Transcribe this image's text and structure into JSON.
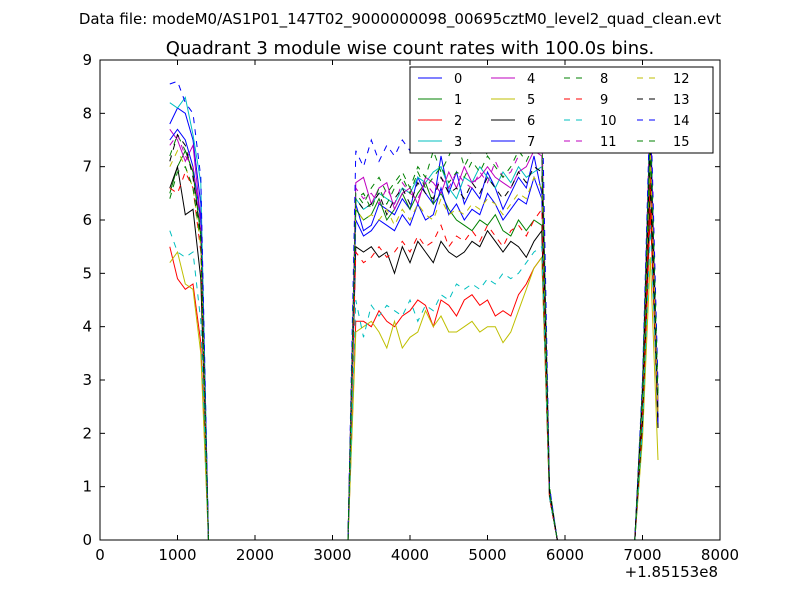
{
  "figure": {
    "suptitle": "Data file: modeM0/AS1P01_147T02_9000000098_00695cztM0_level2_quad_clean.evt"
  },
  "chart_data": {
    "type": "line",
    "title": "Quadrant 3 module wise count rates with 100.0s bins.",
    "xlabel": "",
    "ylabel": "",
    "x_offset_label": "+1.85153e8",
    "xlim": [
      0,
      8000
    ],
    "ylim": [
      0,
      9
    ],
    "xticks": [
      "0",
      "1000",
      "2000",
      "3000",
      "4000",
      "5000",
      "6000",
      "7000",
      "8000"
    ],
    "yticks": [
      "0",
      "1",
      "2",
      "3",
      "4",
      "5",
      "6",
      "7",
      "8",
      "9"
    ],
    "grid": false,
    "legend_position": "top-right",
    "x": [
      900,
      1000,
      1100,
      1200,
      1300,
      1400,
      1500,
      3100,
      3200,
      3300,
      3400,
      3500,
      3600,
      3700,
      3800,
      3900,
      4000,
      4100,
      4200,
      4300,
      4400,
      4500,
      4600,
      4700,
      4800,
      4900,
      5000,
      5100,
      5200,
      5300,
      5400,
      5500,
      5600,
      5700,
      5800,
      5900,
      6000,
      6900,
      7000,
      7100,
      7200
    ],
    "series": [
      {
        "name": "0",
        "color": "#0000ff",
        "dash": "solid",
        "values": [
          7.8,
          8.1,
          8.0,
          7.5,
          6.3,
          0,
          0,
          0,
          0,
          6.3,
          5.8,
          5.9,
          6.3,
          6.2,
          6.1,
          6.4,
          6.2,
          6.8,
          6.5,
          6.3,
          7.2,
          6.5,
          6.9,
          6.3,
          6.6,
          6.4,
          6.9,
          6.6,
          6.2,
          6.5,
          6.8,
          6.6,
          7.2,
          6.5,
          0.9,
          0,
          0,
          0,
          2.8,
          8.1,
          2.1
        ]
      },
      {
        "name": "1",
        "color": "#008000",
        "dash": "solid",
        "values": [
          6.5,
          7.0,
          7.3,
          6.9,
          5.7,
          0,
          0,
          0,
          0,
          6.2,
          6.0,
          6.1,
          6.4,
          6.0,
          6.2,
          6.5,
          6.2,
          6.5,
          6.7,
          6.3,
          6.5,
          6.2,
          6.0,
          5.9,
          5.8,
          6.0,
          5.9,
          6.1,
          5.8,
          5.7,
          6.0,
          5.8,
          6.0,
          5.9,
          0.9,
          0,
          0,
          0,
          2.5,
          7.2,
          2.6
        ]
      },
      {
        "name": "2",
        "color": "#ff0000",
        "dash": "solid",
        "values": [
          5.5,
          4.9,
          4.7,
          4.8,
          3.7,
          0,
          0,
          0,
          0,
          4.1,
          4.1,
          4.0,
          4.3,
          4.1,
          4.0,
          4.2,
          4.3,
          4.5,
          4.4,
          4.0,
          4.5,
          4.4,
          4.2,
          4.5,
          4.6,
          4.4,
          4.5,
          4.2,
          4.3,
          4.2,
          4.6,
          4.8,
          5.1,
          5.3,
          0.8,
          0,
          0,
          0,
          2.0,
          6.2,
          2.2
        ]
      },
      {
        "name": "3",
        "color": "#00bfbf",
        "dash": "solid",
        "values": [
          8.2,
          8.1,
          8.3,
          7.6,
          6.7,
          0,
          0,
          0,
          0,
          6.4,
          6.2,
          6.3,
          6.5,
          6.4,
          6.3,
          6.6,
          6.5,
          6.8,
          6.7,
          6.9,
          7.0,
          6.6,
          6.4,
          6.8,
          6.7,
          7.0,
          6.8,
          6.6,
          6.9,
          6.7,
          7.0,
          6.8,
          6.9,
          7.0,
          0.9,
          0,
          0,
          0,
          2.7,
          7.6,
          2.5
        ]
      },
      {
        "name": "4",
        "color": "#bf00bf",
        "dash": "solid",
        "values": [
          7.7,
          7.5,
          7.1,
          7.4,
          6.0,
          0,
          0,
          0,
          0,
          6.7,
          6.8,
          6.3,
          6.6,
          6.7,
          6.2,
          6.5,
          6.6,
          6.3,
          6.8,
          6.7,
          6.5,
          6.9,
          6.6,
          7.0,
          6.7,
          6.8,
          7.0,
          6.8,
          6.7,
          6.6,
          6.9,
          7.0,
          7.3,
          7.2,
          0.9,
          0,
          0,
          0,
          2.6,
          7.8,
          2.4
        ]
      },
      {
        "name": "5",
        "color": "#bfbf00",
        "dash": "solid",
        "values": [
          5.2,
          5.4,
          4.8,
          4.7,
          3.5,
          0,
          0,
          0,
          0,
          3.9,
          4.0,
          4.1,
          3.9,
          3.6,
          4.1,
          3.6,
          3.8,
          3.9,
          4.3,
          4.0,
          4.2,
          3.9,
          3.9,
          4.0,
          4.1,
          3.9,
          4.0,
          4.0,
          3.7,
          3.9,
          4.3,
          4.7,
          5.1,
          5.3,
          0.8,
          0,
          0,
          0,
          1.9,
          5.3,
          1.5
        ]
      },
      {
        "name": "6",
        "color": "#000000",
        "dash": "solid",
        "values": [
          6.6,
          7.0,
          6.1,
          6.2,
          4.9,
          0,
          0,
          0,
          0,
          5.5,
          5.4,
          5.5,
          5.3,
          5.4,
          5.0,
          5.5,
          5.2,
          5.6,
          5.4,
          5.2,
          5.6,
          5.4,
          5.3,
          5.4,
          5.6,
          5.5,
          5.8,
          5.6,
          5.4,
          5.6,
          5.5,
          5.3,
          5.6,
          5.8,
          0.8,
          0,
          0,
          0,
          2.2,
          6.7,
          2.1
        ]
      },
      {
        "name": "7",
        "color": "#0000ff",
        "dash": "solid",
        "values": [
          7.5,
          7.7,
          7.5,
          7.0,
          6.0,
          0,
          0,
          0,
          0,
          6.0,
          5.7,
          5.8,
          6.0,
          5.9,
          5.8,
          6.1,
          5.9,
          6.3,
          6.0,
          6.1,
          6.6,
          6.1,
          6.3,
          6.0,
          6.2,
          6.1,
          6.5,
          6.3,
          6.0,
          6.2,
          6.4,
          6.3,
          6.8,
          6.4,
          0.9,
          0,
          0,
          0,
          2.7,
          7.9,
          2.2
        ]
      },
      {
        "name": "8",
        "color": "#008000",
        "dash": "dashed",
        "values": [
          7.2,
          7.6,
          7.3,
          6.9,
          5.8,
          0,
          0,
          0,
          0,
          6.5,
          6.3,
          6.6,
          6.8,
          6.5,
          6.7,
          6.9,
          6.6,
          7.0,
          6.8,
          7.3,
          6.9,
          7.2,
          7.5,
          7.0,
          7.3,
          7.6,
          7.2,
          7.8,
          7.4,
          7.6,
          7.9,
          7.5,
          7.8,
          7.7,
          1.0,
          0,
          0,
          0,
          2.9,
          8.0,
          2.8
        ]
      },
      {
        "name": "9",
        "color": "#ff0000",
        "dash": "dashed",
        "values": [
          6.6,
          6.5,
          6.9,
          6.6,
          5.4,
          0,
          0,
          0,
          0,
          5.4,
          5.2,
          5.3,
          5.5,
          5.3,
          5.4,
          5.6,
          5.4,
          5.7,
          5.5,
          5.6,
          5.9,
          5.5,
          5.7,
          5.6,
          5.8,
          5.6,
          5.9,
          5.7,
          5.5,
          5.8,
          5.9,
          5.7,
          6.0,
          6.2,
          0.8,
          0,
          0,
          0,
          2.4,
          6.8,
          2.3
        ]
      },
      {
        "name": "10",
        "color": "#00bfbf",
        "dash": "dashed",
        "values": [
          5.8,
          5.4,
          5.3,
          5.4,
          4.1,
          0,
          0,
          0,
          0,
          4.5,
          3.8,
          4.4,
          4.2,
          4.4,
          4.3,
          4.2,
          4.5,
          4.1,
          4.4,
          4.3,
          4.6,
          4.5,
          4.8,
          4.7,
          4.8,
          4.7,
          4.9,
          4.8,
          5.0,
          4.9,
          5.0,
          5.2,
          5.4,
          5.5,
          0.8,
          0,
          0,
          0,
          2.1,
          5.9,
          2.4
        ]
      },
      {
        "name": "11",
        "color": "#bf00bf",
        "dash": "dashed",
        "values": [
          7.4,
          7.6,
          7.2,
          7.0,
          5.9,
          0,
          0,
          0,
          0,
          6.6,
          6.4,
          6.5,
          6.3,
          6.6,
          6.3,
          6.7,
          6.5,
          6.4,
          6.7,
          6.5,
          6.8,
          6.6,
          6.9,
          6.7,
          6.6,
          6.9,
          6.7,
          7.1,
          6.8,
          6.9,
          7.2,
          7.4,
          7.6,
          7.8,
          0.9,
          0,
          0,
          0,
          2.8,
          8.2,
          2.5
        ]
      },
      {
        "name": "12",
        "color": "#bfbf00",
        "dash": "dashed",
        "values": [
          7.0,
          7.3,
          7.0,
          6.6,
          5.5,
          0,
          0,
          0,
          0,
          6.2,
          6.0,
          6.1,
          6.0,
          6.2,
          5.9,
          6.2,
          6.0,
          6.3,
          6.1,
          6.0,
          6.4,
          6.1,
          6.2,
          6.1,
          6.3,
          6.2,
          6.4,
          6.3,
          6.1,
          6.3,
          6.5,
          6.4,
          6.8,
          6.6,
          0.9,
          0,
          0,
          0,
          2.6,
          7.3,
          2.4
        ]
      },
      {
        "name": "13",
        "color": "#000000",
        "dash": "dashed",
        "values": [
          7.1,
          7.6,
          7.4,
          6.8,
          5.7,
          0,
          0,
          0,
          0,
          6.4,
          6.2,
          6.3,
          6.5,
          6.1,
          6.4,
          6.6,
          6.3,
          6.7,
          6.5,
          6.4,
          6.8,
          6.5,
          6.6,
          6.4,
          6.7,
          6.5,
          6.8,
          6.6,
          6.4,
          6.6,
          6.9,
          6.7,
          7.0,
          6.9,
          0.9,
          0,
          0,
          0,
          2.7,
          7.5,
          2.3
        ]
      },
      {
        "name": "14",
        "color": "#0000ff",
        "dash": "dashed",
        "values": [
          8.55,
          8.6,
          8.2,
          8.0,
          6.8,
          0,
          0,
          0,
          0,
          7.3,
          7.0,
          7.5,
          7.1,
          7.4,
          7.2,
          7.5,
          7.3,
          7.6,
          7.7,
          7.4,
          7.8,
          7.5,
          7.9,
          7.6,
          8.0,
          7.8,
          8.1,
          7.7,
          7.9,
          8.2,
          8.0,
          8.5,
          8.3,
          8.6,
          1.0,
          0,
          0,
          0,
          3.0,
          8.4,
          2.9
        ]
      },
      {
        "name": "15",
        "color": "#008000",
        "dash": "dashed",
        "values": [
          6.4,
          6.9,
          7.0,
          6.6,
          5.6,
          0,
          0,
          0,
          0,
          6.4,
          6.5,
          6.2,
          6.6,
          6.3,
          6.6,
          6.8,
          6.5,
          6.9,
          6.6,
          6.8,
          7.0,
          6.7,
          6.9,
          6.8,
          7.1,
          6.9,
          7.2,
          7.0,
          6.8,
          7.0,
          7.3,
          7.1,
          7.4,
          7.3,
          0.9,
          0,
          0,
          0,
          2.8,
          7.7,
          2.7
        ]
      }
    ]
  }
}
